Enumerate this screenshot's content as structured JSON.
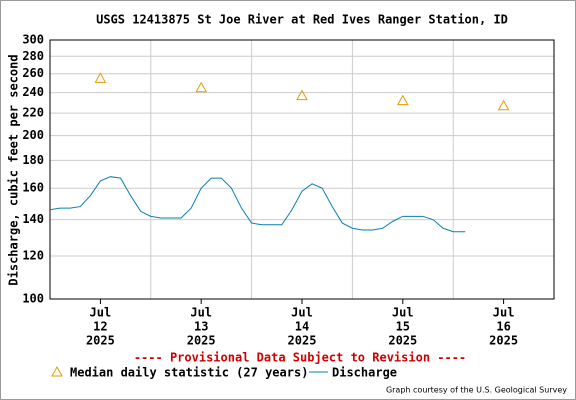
{
  "chart_data": {
    "type": "line",
    "title": "USGS 12413875 St Joe River at Red Ives Ranger Station, ID",
    "y_label": "Discharge, cubic feet per second",
    "annotation": "---- Provisional Data Subject to Revision ----",
    "credit": "Graph courtesy of the U.S. Geological Survey",
    "log_y": true,
    "grid": true,
    "ylim": [
      100,
      300
    ],
    "yticks": [
      100,
      120,
      140,
      160,
      180,
      200,
      220,
      240,
      260,
      280,
      300
    ],
    "xlim": [
      0,
      5
    ],
    "xgrid": [
      1,
      2,
      3,
      4
    ],
    "xticks": [
      {
        "value": 0.5,
        "label": [
          "Jul",
          "12",
          "2025"
        ]
      },
      {
        "value": 1.5,
        "label": [
          "Jul",
          "13",
          "2025"
        ]
      },
      {
        "value": 2.5,
        "label": [
          "Jul",
          "14",
          "2025"
        ]
      },
      {
        "value": 3.5,
        "label": [
          "Jul",
          "15",
          "2025"
        ]
      },
      {
        "value": 4.5,
        "label": [
          "Jul",
          "16",
          "2025"
        ]
      }
    ],
    "series": [
      {
        "name": "Median daily statistic (27 years)",
        "color": "#e69b00",
        "style": "markers",
        "x": [
          0.5,
          1.5,
          2.5,
          3.5,
          4.5
        ],
        "values": [
          255,
          245,
          237,
          232,
          227
        ]
      },
      {
        "name": "Discharge",
        "color": "#0a7fb0",
        "style": "line",
        "x": [
          0,
          0.1,
          0.2,
          0.3,
          0.4,
          0.5,
          0.6,
          0.7,
          0.8,
          0.9,
          1.0,
          1.1,
          1.2,
          1.3,
          1.4,
          1.5,
          1.6,
          1.7,
          1.8,
          1.9,
          2.0,
          2.1,
          2.2,
          2.3,
          2.4,
          2.5,
          2.6,
          2.7,
          2.8,
          2.9,
          3.0,
          3.1,
          3.2,
          3.3,
          3.4,
          3.5,
          3.6,
          3.7,
          3.8,
          3.9,
          4.0,
          4.1,
          4.12
        ],
        "values": [
          146,
          147,
          147,
          148,
          155,
          165,
          168,
          167,
          155,
          145,
          142,
          141,
          141,
          141,
          147,
          160,
          167,
          167,
          160,
          147,
          138,
          137,
          137,
          137,
          146,
          158,
          163,
          160,
          148,
          138,
          135,
          134,
          134,
          135,
          139,
          142,
          142,
          142,
          140,
          135,
          133,
          133,
          133
        ]
      }
    ]
  }
}
